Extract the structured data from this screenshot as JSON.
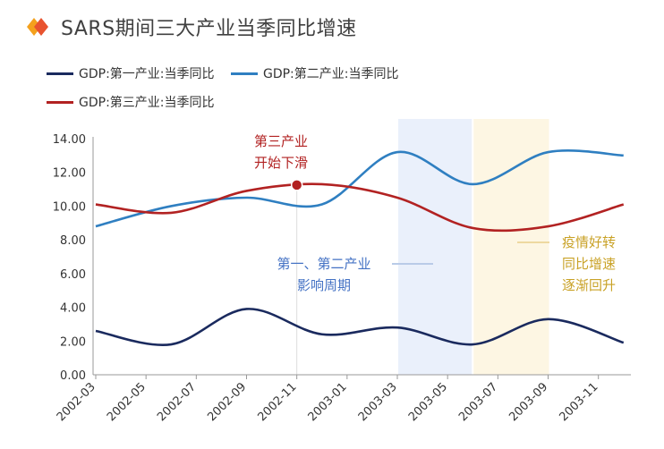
{
  "chart_title": "SARS期间三大产业当季同比增速",
  "colors": {
    "series1": "#1a2a5e",
    "series2": "#2f7fc1",
    "series3": "#b22222",
    "band_blue": "#eaf0fb",
    "band_yellow": "#fdf6e3",
    "annotation_red": "#b22222",
    "annotation_blue": "#4472c4",
    "annotation_gold": "#c9a227"
  },
  "chart_data": {
    "type": "line",
    "y_axis": {
      "min": 0,
      "max": 14,
      "ticks": [
        "0.00",
        "2.00",
        "4.00",
        "6.00",
        "8.00",
        "10.00",
        "12.00",
        "14.00"
      ]
    },
    "x_tick_labels": [
      "2002-03",
      "2002-05",
      "2002-07",
      "2002-09",
      "2002-11",
      "2003-01",
      "2003-03",
      "2003-05",
      "2003-07",
      "2003-09",
      "2003-11"
    ],
    "x_months_range": [
      "2002-03",
      "2003-12"
    ],
    "series": [
      {
        "name": "GDP:第一产业:当季同比",
        "points": [
          [
            "2002-03",
            2.6
          ],
          [
            "2002-06",
            1.8
          ],
          [
            "2002-09",
            3.9
          ],
          [
            "2002-12",
            2.4
          ],
          [
            "2003-03",
            2.8
          ],
          [
            "2003-06",
            1.8
          ],
          [
            "2003-09",
            3.3
          ],
          [
            "2003-12",
            1.9
          ]
        ]
      },
      {
        "name": "GDP:第二产业:当季同比",
        "points": [
          [
            "2002-03",
            8.8
          ],
          [
            "2002-06",
            10.0
          ],
          [
            "2002-09",
            10.5
          ],
          [
            "2002-12",
            10.1
          ],
          [
            "2003-03",
            13.2
          ],
          [
            "2003-06",
            11.3
          ],
          [
            "2003-09",
            13.2
          ],
          [
            "2003-12",
            13.0
          ]
        ]
      },
      {
        "name": "GDP:第三产业:当季同比",
        "points": [
          [
            "2002-03",
            10.1
          ],
          [
            "2002-06",
            9.6
          ],
          [
            "2002-09",
            10.9
          ],
          [
            "2002-12",
            11.3
          ],
          [
            "2003-03",
            10.5
          ],
          [
            "2003-06",
            8.7
          ],
          [
            "2003-09",
            8.8
          ],
          [
            "2003-12",
            10.1
          ]
        ]
      }
    ],
    "bands": [
      {
        "from": "2003-03",
        "to": "2003-06",
        "kind": "blue"
      },
      {
        "from": "2003-06",
        "to": "2003-09",
        "kind": "yellow"
      }
    ],
    "marker": {
      "x": "2002-11",
      "y": 11.25
    },
    "annotations": {
      "red": [
        "第三产业",
        "开始下滑"
      ],
      "blue": [
        "第一、第二产业",
        "影响周期"
      ],
      "gold": [
        "疫情好转",
        "同比增速",
        "逐渐回升"
      ]
    }
  }
}
